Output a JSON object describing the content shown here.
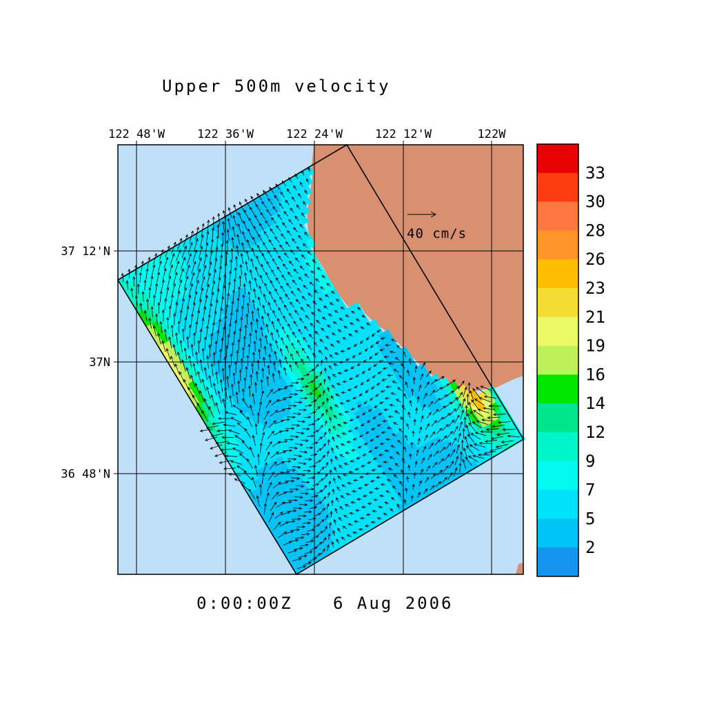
{
  "title": "Upper 500m velocity",
  "timestamp": {
    "time": "0:00:00Z",
    "date": "6 Aug 2006"
  },
  "lon_ticks": [
    "122 48'W",
    "122 36'W",
    "122 24'W",
    "122 12'W",
    "122W"
  ],
  "lat_ticks": [
    "37 12'N",
    "37N",
    "36 48'N"
  ],
  "reference_vector": {
    "label": "40 cm/s",
    "value": 40,
    "units": "cm/s"
  },
  "colorbar": {
    "labels": [
      "33",
      "30",
      "28",
      "26",
      "23",
      "21",
      "19",
      "16",
      "14",
      "12",
      "9",
      "7",
      "5",
      "2"
    ],
    "colors": [
      "#e80000",
      "#ff3c10",
      "#ff7840",
      "#ff9428",
      "#ffbe00",
      "#f5dc30",
      "#ebfa64",
      "#bef05a",
      "#00e600",
      "#00e68c",
      "#00f5c8",
      "#00faf0",
      "#00e1fa",
      "#00c3f5",
      "#1496f0"
    ]
  },
  "colors": {
    "ocean_background": "#c0e0fa",
    "land": "#d89070",
    "frame": "#000000"
  }
}
